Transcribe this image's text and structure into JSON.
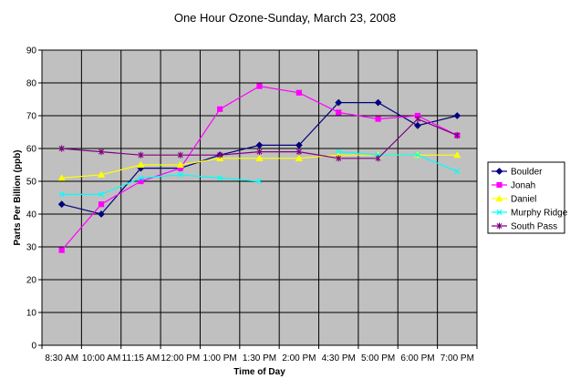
{
  "chart_data": {
    "type": "line",
    "title": "One Hour Ozone-Sunday, March 23, 2008",
    "xlabel": "Time of Day",
    "ylabel": "Parts Per Billion (ppb)",
    "ylim": [
      0,
      90
    ],
    "yticks": [
      0,
      10,
      20,
      30,
      40,
      50,
      60,
      70,
      80,
      90
    ],
    "grid": true,
    "legend_position": "right",
    "plot_background": "#c0c0c0",
    "categories": [
      "8:30 AM",
      "10:00 AM",
      "11:15 AM",
      "12:00 PM",
      "1:00 PM",
      "1:30 PM",
      "2:00 PM",
      "4:30 PM",
      "5:00 PM",
      "6:00 PM",
      "7:00 PM"
    ],
    "series": [
      {
        "name": "Boulder",
        "color": "#000080",
        "marker": "diamond",
        "values": [
          43,
          40,
          54,
          54,
          58,
          61,
          61,
          74,
          74,
          67,
          70
        ]
      },
      {
        "name": "Jonah",
        "color": "#ff00ff",
        "marker": "square",
        "values": [
          29,
          43,
          50,
          54,
          72,
          79,
          77,
          71,
          69,
          70,
          64
        ]
      },
      {
        "name": "Daniel",
        "color": "#ffff00",
        "marker": "triangle",
        "values": [
          51,
          52,
          55,
          55,
          57,
          57,
          57,
          58,
          58,
          58,
          58
        ]
      },
      {
        "name": "Murphy Ridge",
        "color": "#00ffff",
        "marker": "x",
        "values": [
          46,
          46,
          51,
          52,
          51,
          50,
          null,
          59,
          58,
          58,
          53
        ]
      },
      {
        "name": "South Pass",
        "color": "#800080",
        "marker": "star",
        "values": [
          60,
          59,
          58,
          58,
          58,
          59,
          59,
          57,
          57,
          69,
          64
        ]
      }
    ]
  }
}
